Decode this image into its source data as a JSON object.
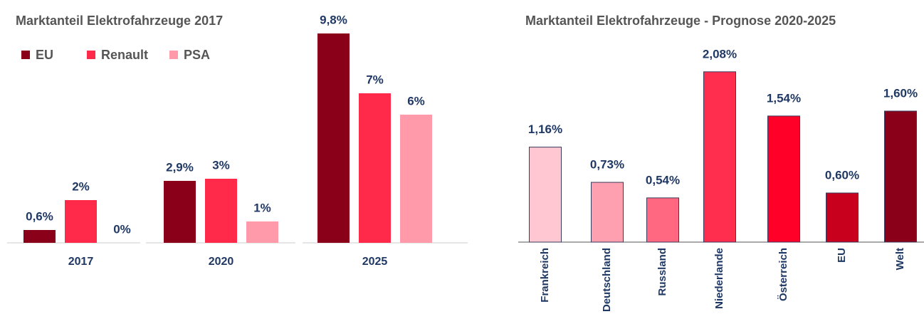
{
  "chart_data": [
    {
      "type": "grouped_bar",
      "title": "Marktanteil Elektrofahrzeuge 2017",
      "categories": [
        "2017",
        "2020",
        "2025"
      ],
      "series": [
        {
          "name": "EU",
          "color": "#8b0019",
          "values": [
            0.6,
            2.9,
            9.8
          ],
          "value_labels": [
            "0,6%",
            "2,9%",
            "9,8%"
          ]
        },
        {
          "name": "Renault",
          "color": "#ff2a4a",
          "values": [
            2,
            3,
            7
          ],
          "value_labels": [
            "2%",
            "3%",
            "7%"
          ]
        },
        {
          "name": "PSA",
          "color": "#ff9aaa",
          "values": [
            0,
            1,
            6
          ],
          "value_labels": [
            "0%",
            "1%",
            "6%"
          ]
        }
      ]
    },
    {
      "type": "bar",
      "title": "Marktanteil Elektrofahrzeuge - Prognose 2020-2025",
      "categories": [
        "Frankreich",
        "Deutschland",
        "Russland",
        "Niederlande",
        "Österreich",
        "EU",
        "Welt"
      ],
      "values": [
        1.16,
        0.73,
        0.54,
        2.08,
        1.54,
        0.6,
        1.6
      ],
      "value_labels": [
        "1,16%",
        "0,73%",
        "0,54%",
        "2,08%",
        "1,54%",
        "0,60%",
        "1,60%"
      ],
      "colors": [
        "#ffc7d1",
        "#ffa0b0",
        "#ff6880",
        "#ff2e4e",
        "#ff0028",
        "#c8001e",
        "#8b0019"
      ]
    }
  ]
}
